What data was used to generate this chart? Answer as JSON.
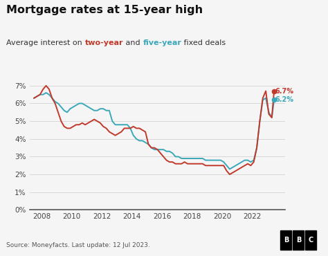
{
  "title": "Mortgage rates at 15-year high",
  "subtitle_plain": "Average interest on ",
  "subtitle_two": "two-year",
  "subtitle_mid": " and ",
  "subtitle_five": "five-year",
  "subtitle_end": " fixed deals",
  "color_two": "#c0392b",
  "color_five": "#3aa8b8",
  "source": "Source: Moneyfacts. Last update: 12 Jul 2023.",
  "bbc_text": "BBC",
  "ylim": [
    0,
    0.075
  ],
  "yticks": [
    0.0,
    0.01,
    0.02,
    0.03,
    0.04,
    0.05,
    0.06,
    0.07
  ],
  "ytick_labels": [
    "0%",
    "1%",
    "2%",
    "3%",
    "4%",
    "5%",
    "6%",
    "7%"
  ],
  "xlim_left": 2007.2,
  "xlim_right": 2024.2,
  "background_color": "#f5f5f5",
  "label_67": "6.7%",
  "label_62": "6.2%",
  "two_year": {
    "years": [
      2007.5,
      2007.7,
      2007.9,
      2008.1,
      2008.3,
      2008.5,
      2008.7,
      2008.9,
      2009.1,
      2009.3,
      2009.5,
      2009.7,
      2009.9,
      2010.1,
      2010.3,
      2010.5,
      2010.7,
      2010.9,
      2011.1,
      2011.3,
      2011.5,
      2011.7,
      2011.9,
      2012.1,
      2012.3,
      2012.5,
      2012.7,
      2012.9,
      2013.1,
      2013.3,
      2013.5,
      2013.7,
      2013.9,
      2014.1,
      2014.3,
      2014.5,
      2014.7,
      2014.9,
      2015.1,
      2015.3,
      2015.5,
      2015.7,
      2015.9,
      2016.1,
      2016.3,
      2016.5,
      2016.7,
      2016.9,
      2017.1,
      2017.3,
      2017.5,
      2017.7,
      2017.9,
      2018.1,
      2018.3,
      2018.5,
      2018.7,
      2018.9,
      2019.1,
      2019.3,
      2019.5,
      2019.7,
      2019.9,
      2020.1,
      2020.3,
      2020.5,
      2020.7,
      2020.9,
      2021.1,
      2021.3,
      2021.5,
      2021.7,
      2021.9,
      2022.1,
      2022.3,
      2022.5,
      2022.7,
      2022.9,
      2023.1,
      2023.3,
      2023.45
    ],
    "values": [
      0.063,
      0.064,
      0.065,
      0.068,
      0.07,
      0.068,
      0.063,
      0.06,
      0.055,
      0.05,
      0.047,
      0.046,
      0.046,
      0.047,
      0.048,
      0.048,
      0.049,
      0.048,
      0.049,
      0.05,
      0.051,
      0.05,
      0.049,
      0.047,
      0.046,
      0.044,
      0.043,
      0.042,
      0.043,
      0.044,
      0.046,
      0.046,
      0.046,
      0.047,
      0.046,
      0.046,
      0.045,
      0.044,
      0.037,
      0.035,
      0.035,
      0.034,
      0.032,
      0.03,
      0.028,
      0.027,
      0.027,
      0.026,
      0.026,
      0.026,
      0.027,
      0.026,
      0.026,
      0.026,
      0.026,
      0.026,
      0.026,
      0.025,
      0.025,
      0.025,
      0.025,
      0.025,
      0.025,
      0.025,
      0.022,
      0.02,
      0.021,
      0.022,
      0.023,
      0.024,
      0.025,
      0.026,
      0.025,
      0.027,
      0.035,
      0.05,
      0.063,
      0.067,
      0.054,
      0.052,
      0.067
    ]
  },
  "five_year": {
    "years": [
      2007.5,
      2007.7,
      2007.9,
      2008.1,
      2008.3,
      2008.5,
      2008.7,
      2008.9,
      2009.1,
      2009.3,
      2009.5,
      2009.7,
      2009.9,
      2010.1,
      2010.3,
      2010.5,
      2010.7,
      2010.9,
      2011.1,
      2011.3,
      2011.5,
      2011.7,
      2011.9,
      2012.1,
      2012.3,
      2012.5,
      2012.7,
      2012.9,
      2013.1,
      2013.3,
      2013.5,
      2013.7,
      2013.9,
      2014.1,
      2014.3,
      2014.5,
      2014.7,
      2014.9,
      2015.1,
      2015.3,
      2015.5,
      2015.7,
      2015.9,
      2016.1,
      2016.3,
      2016.5,
      2016.7,
      2016.9,
      2017.1,
      2017.3,
      2017.5,
      2017.7,
      2017.9,
      2018.1,
      2018.3,
      2018.5,
      2018.7,
      2018.9,
      2019.1,
      2019.3,
      2019.5,
      2019.7,
      2019.9,
      2020.1,
      2020.3,
      2020.5,
      2020.7,
      2020.9,
      2021.1,
      2021.3,
      2021.5,
      2021.7,
      2021.9,
      2022.1,
      2022.3,
      2022.5,
      2022.7,
      2022.9,
      2023.1,
      2023.3,
      2023.45
    ],
    "values": [
      0.063,
      0.064,
      0.065,
      0.065,
      0.066,
      0.065,
      0.063,
      0.061,
      0.06,
      0.058,
      0.056,
      0.055,
      0.057,
      0.058,
      0.059,
      0.06,
      0.06,
      0.059,
      0.058,
      0.057,
      0.056,
      0.056,
      0.057,
      0.057,
      0.056,
      0.056,
      0.05,
      0.048,
      0.048,
      0.048,
      0.048,
      0.048,
      0.046,
      0.042,
      0.04,
      0.039,
      0.039,
      0.038,
      0.037,
      0.035,
      0.034,
      0.034,
      0.034,
      0.034,
      0.033,
      0.033,
      0.032,
      0.03,
      0.03,
      0.029,
      0.029,
      0.029,
      0.029,
      0.029,
      0.029,
      0.029,
      0.029,
      0.028,
      0.028,
      0.028,
      0.028,
      0.028,
      0.028,
      0.027,
      0.025,
      0.023,
      0.024,
      0.025,
      0.026,
      0.027,
      0.028,
      0.028,
      0.027,
      0.028,
      0.035,
      0.05,
      0.062,
      0.063,
      0.055,
      0.052,
      0.062
    ]
  }
}
